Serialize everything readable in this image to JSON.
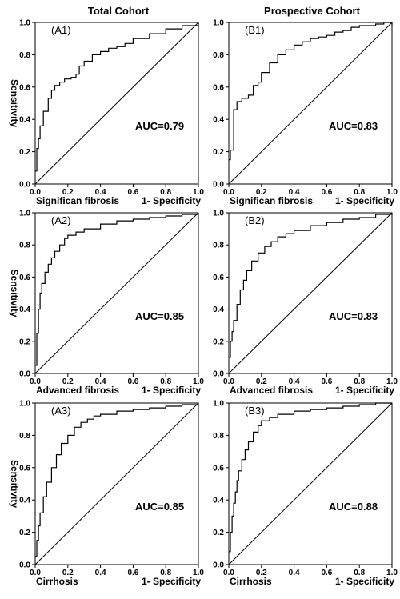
{
  "column_titles": [
    "Total Cohort",
    "Prospective Cohort"
  ],
  "y_axis_label": "Sensitivity",
  "x_axis_label": "1- Specificity",
  "tick_labels": [
    "0.0",
    "0.2",
    "0.4",
    "0.6",
    "0.8",
    "1.0"
  ],
  "colors": {
    "curve": "#000000",
    "axes": "#000000",
    "background": "#ffffff"
  },
  "chart_data": [
    {
      "type": "line",
      "panel_label": "(A1)",
      "outcome": "Significan fibrosis",
      "auc": "AUC=0.79",
      "xlabel": "1- Specificity",
      "ylabel": "Sensitivity",
      "xlim": [
        0,
        1
      ],
      "ylim": [
        0,
        1
      ],
      "reference_line": true,
      "series": [
        {
          "x": [
            0,
            0.01,
            0.02,
            0.03,
            0.05,
            0.08,
            0.1,
            0.12,
            0.15,
            0.18,
            0.22,
            0.25,
            0.27,
            0.3,
            0.35,
            0.4,
            0.45,
            0.5,
            0.55,
            0.6,
            0.7,
            0.8,
            0.9,
            1.0
          ],
          "y": [
            0.08,
            0.22,
            0.28,
            0.36,
            0.45,
            0.53,
            0.58,
            0.61,
            0.63,
            0.65,
            0.66,
            0.68,
            0.73,
            0.76,
            0.8,
            0.82,
            0.84,
            0.85,
            0.87,
            0.9,
            0.93,
            0.96,
            0.98,
            1.0
          ]
        }
      ]
    },
    {
      "type": "line",
      "panel_label": "(B1)",
      "outcome": "Significan fibrosis",
      "auc": "AUC=0.83",
      "xlabel": "1- Specificity",
      "ylabel": "",
      "xlim": [
        0,
        1
      ],
      "ylim": [
        0,
        1
      ],
      "reference_line": true,
      "series": [
        {
          "x": [
            0,
            0.01,
            0.02,
            0.03,
            0.05,
            0.08,
            0.12,
            0.15,
            0.18,
            0.2,
            0.25,
            0.3,
            0.35,
            0.4,
            0.45,
            0.5,
            0.55,
            0.6,
            0.65,
            0.7,
            0.75,
            0.8,
            0.9,
            0.95,
            1.0
          ],
          "y": [
            0.15,
            0.21,
            0.21,
            0.46,
            0.51,
            0.53,
            0.55,
            0.61,
            0.63,
            0.69,
            0.75,
            0.8,
            0.83,
            0.86,
            0.88,
            0.9,
            0.91,
            0.92,
            0.94,
            0.95,
            0.97,
            0.98,
            0.99,
            1.0,
            0.98
          ]
        }
      ]
    },
    {
      "type": "line",
      "panel_label": "(A2)",
      "outcome": "Advanced fibrosis",
      "auc": "AUC=0.85",
      "xlabel": "1- Specificity",
      "ylabel": "Sensitivity",
      "xlim": [
        0,
        1
      ],
      "ylim": [
        0,
        1
      ],
      "reference_line": true,
      "series": [
        {
          "x": [
            0,
            0.01,
            0.02,
            0.03,
            0.04,
            0.06,
            0.08,
            0.1,
            0.12,
            0.15,
            0.18,
            0.2,
            0.25,
            0.3,
            0.4,
            0.5,
            0.6,
            0.7,
            0.8,
            0.9,
            1.0
          ],
          "y": [
            0.05,
            0.25,
            0.4,
            0.5,
            0.56,
            0.63,
            0.68,
            0.72,
            0.76,
            0.8,
            0.84,
            0.86,
            0.88,
            0.9,
            0.93,
            0.95,
            0.96,
            0.97,
            0.98,
            0.99,
            1.0
          ]
        }
      ]
    },
    {
      "type": "line",
      "panel_label": "(B2)",
      "outcome": "Advanced fibrosis",
      "auc": "AUC=0.83",
      "xlabel": "1- Specificity",
      "ylabel": "",
      "xlim": [
        0,
        1
      ],
      "ylim": [
        0,
        1
      ],
      "reference_line": true,
      "series": [
        {
          "x": [
            0,
            0.01,
            0.02,
            0.03,
            0.05,
            0.07,
            0.09,
            0.11,
            0.14,
            0.18,
            0.22,
            0.26,
            0.3,
            0.35,
            0.4,
            0.5,
            0.6,
            0.7,
            0.8,
            0.9,
            1.0
          ],
          "y": [
            0.1,
            0.2,
            0.26,
            0.33,
            0.43,
            0.52,
            0.58,
            0.64,
            0.7,
            0.75,
            0.79,
            0.82,
            0.85,
            0.87,
            0.89,
            0.92,
            0.94,
            0.96,
            0.97,
            0.99,
            1.0
          ]
        }
      ]
    },
    {
      "type": "line",
      "panel_label": "(A3)",
      "outcome": "Cirrhosis",
      "auc": "AUC=0.85",
      "xlabel": "1- Specificity",
      "ylabel": "Sensitivity",
      "xlim": [
        0,
        1
      ],
      "ylim": [
        0,
        1
      ],
      "reference_line": true,
      "series": [
        {
          "x": [
            0,
            0.01,
            0.02,
            0.03,
            0.05,
            0.07,
            0.1,
            0.13,
            0.16,
            0.2,
            0.24,
            0.28,
            0.32,
            0.36,
            0.4,
            0.5,
            0.6,
            0.7,
            0.8,
            0.9,
            1.0
          ],
          "y": [
            0.05,
            0.15,
            0.24,
            0.32,
            0.42,
            0.51,
            0.6,
            0.68,
            0.75,
            0.8,
            0.85,
            0.88,
            0.9,
            0.92,
            0.93,
            0.95,
            0.96,
            0.97,
            0.98,
            0.99,
            1.0
          ]
        }
      ]
    },
    {
      "type": "line",
      "panel_label": "(B3)",
      "outcome": "Cirrhosis",
      "auc": "AUC=0.88",
      "xlabel": "1- Specificity",
      "ylabel": "",
      "xlim": [
        0,
        1
      ],
      "ylim": [
        0,
        1
      ],
      "reference_line": true,
      "series": [
        {
          "x": [
            0,
            0.01,
            0.02,
            0.03,
            0.04,
            0.05,
            0.06,
            0.08,
            0.1,
            0.12,
            0.15,
            0.18,
            0.2,
            0.25,
            0.3,
            0.4,
            0.5,
            0.6,
            0.7,
            0.8,
            0.9,
            1.0
          ],
          "y": [
            0.08,
            0.2,
            0.3,
            0.38,
            0.45,
            0.52,
            0.58,
            0.65,
            0.71,
            0.76,
            0.82,
            0.86,
            0.89,
            0.91,
            0.93,
            0.95,
            0.96,
            0.97,
            0.98,
            0.99,
            1.0,
            1.0
          ]
        }
      ]
    }
  ]
}
